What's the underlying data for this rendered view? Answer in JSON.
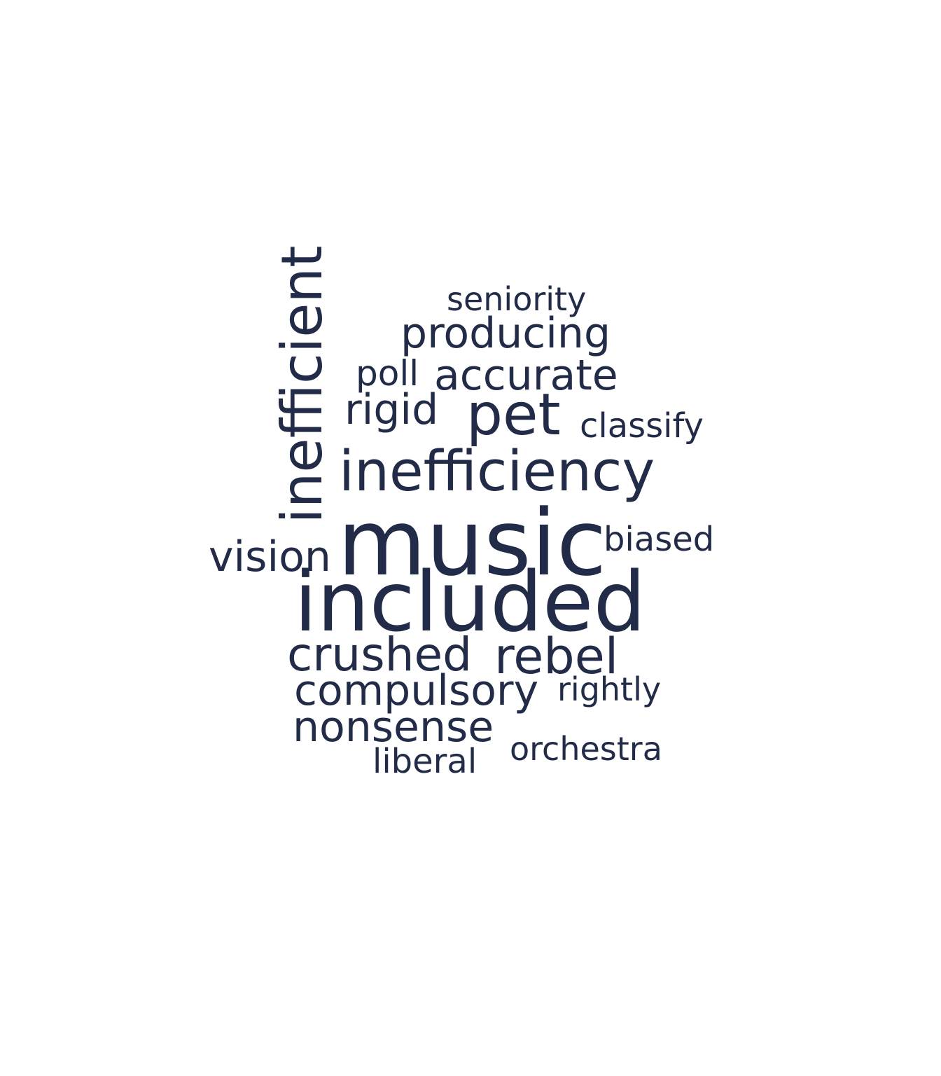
{
  "words": [
    {
      "key": "music",
      "text": "music"
    },
    {
      "key": "included",
      "text": "included"
    },
    {
      "key": "inefficiency",
      "text": "inefficiency"
    },
    {
      "key": "inefficient",
      "text": "inefficient"
    },
    {
      "key": "pet",
      "text": "pet"
    },
    {
      "key": "crushed",
      "text": "crushed"
    },
    {
      "key": "rebel",
      "text": "rebel"
    },
    {
      "key": "producing",
      "text": "producing"
    },
    {
      "key": "accurate",
      "text": "accurate"
    },
    {
      "key": "rigid",
      "text": "rigid"
    },
    {
      "key": "vision",
      "text": "vision"
    },
    {
      "key": "compulsory",
      "text": "compulsory"
    },
    {
      "key": "nonsense",
      "text": "nonsense"
    },
    {
      "key": "seniority",
      "text": "seniority"
    },
    {
      "key": "poll",
      "text": "poll"
    },
    {
      "key": "classify",
      "text": "classify"
    },
    {
      "key": "biased",
      "text": "biased"
    },
    {
      "key": "rightly",
      "text": "rightly"
    },
    {
      "key": "orchestra",
      "text": "orchestra"
    },
    {
      "key": "liberal",
      "text": "liberal"
    }
  ],
  "colors": {
    "text": "#222b47",
    "background": "#ffffff"
  }
}
